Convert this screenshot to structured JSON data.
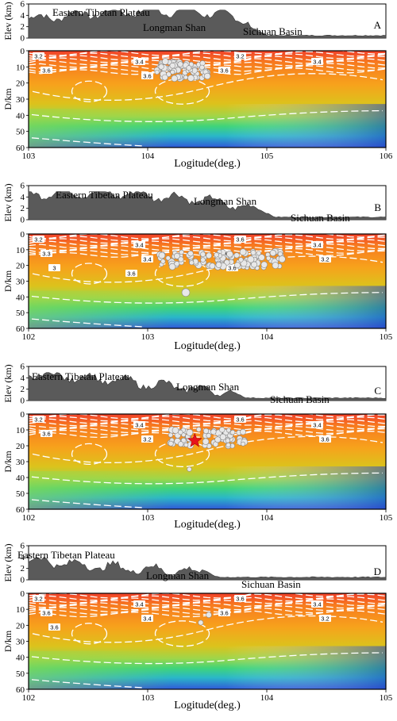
{
  "figure": {
    "panels": [
      {
        "letter": "A",
        "elev_label": "Elev (km)",
        "depth_label": "D/km",
        "xlabel": "Logitude(deg.)",
        "regions": [
          "Eastern Tibetan Plateau",
          "Longman Shan",
          "Sichuan Basin"
        ],
        "x_ticks": [
          "103",
          "104",
          "105",
          "106"
        ],
        "elev_ticks": [
          "0",
          "2",
          "4",
          "6"
        ],
        "depth_ticks": [
          "0",
          "10",
          "20",
          "30",
          "40",
          "50",
          "60"
        ],
        "contour_labels": [
          "3.2",
          "3.4",
          "3.2",
          "3.4",
          "3.6",
          "3.6",
          "3.6"
        ],
        "has_star": false
      },
      {
        "letter": "B",
        "elev_label": "Elev (km)",
        "depth_label": "D/km",
        "xlabel": "Logitude(deg.)",
        "regions": [
          "Eastern Tibetan Plateau",
          "Longman Shan",
          "Sichuan Basin"
        ],
        "x_ticks": [
          "102",
          "103",
          "104",
          "105"
        ],
        "elev_ticks": [
          "0",
          "2",
          "4",
          "6"
        ],
        "depth_ticks": [
          "0",
          "10",
          "20",
          "30",
          "40",
          "50",
          "60"
        ],
        "contour_labels": [
          "3.2",
          "3.4",
          "3.6",
          "3.4",
          "3.3",
          "3.4",
          "3.6",
          "3.2",
          "3",
          "3.6",
          "3.6"
        ],
        "has_star": false
      },
      {
        "letter": "C",
        "elev_label": "Elev (km)",
        "depth_label": "D/km",
        "xlabel": "Logitude(deg.)",
        "regions": [
          "Eastern Tibetan Plateau",
          "Longman Shan",
          "Sichuan Basin"
        ],
        "x_ticks": [
          "102",
          "103",
          "104",
          "105"
        ],
        "elev_ticks": [
          "0",
          "2",
          "4",
          "6"
        ],
        "depth_ticks": [
          "0",
          "10",
          "20",
          "30",
          "40",
          "50",
          "60"
        ],
        "contour_labels": [
          "3.2",
          "3.4",
          "3.6",
          "3.4",
          "3.6",
          "3.2",
          "3.4",
          "3.6"
        ],
        "has_star": true
      },
      {
        "letter": "D",
        "elev_label": "Elev (km)",
        "depth_label": "D/km",
        "xlabel": "Logitude(deg.)",
        "regions": [
          "Eastern Tibetan Plateau",
          "Longman Shan",
          "Sichuan Basin"
        ],
        "x_ticks": [
          "102",
          "103",
          "104",
          "105"
        ],
        "elev_ticks": [
          "0",
          "2",
          "4",
          "6"
        ],
        "depth_ticks": [
          "0",
          "10",
          "20",
          "30",
          "40",
          "50",
          "60"
        ],
        "contour_labels": [
          "3.2",
          "3.4",
          "3.6",
          "3.4",
          "3.6",
          "3.4",
          "3.6",
          "3.2",
          "3.6"
        ],
        "has_star": false
      }
    ]
  }
}
